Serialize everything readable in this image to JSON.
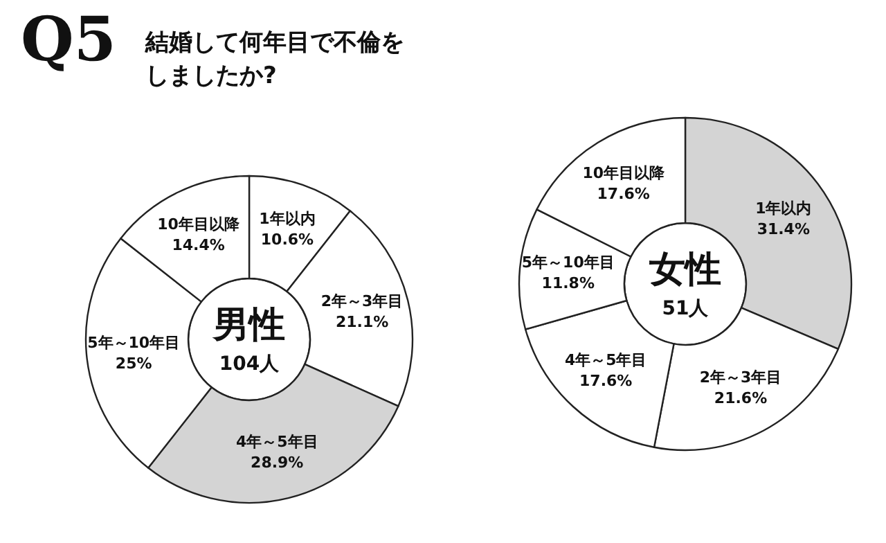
{
  "chart_data": [
    {
      "type": "donut",
      "title": "Q5",
      "subtitle": "結婚して何年目で不倫をしましたか?",
      "annotations": [
        "男性",
        "104人"
      ],
      "categories": [
        "1年以内",
        "2年～3年目",
        "4年～5年目",
        "5年～10年目",
        "10年目以降"
      ],
      "values": [
        10.6,
        21.1,
        28.9,
        25,
        14.4
      ],
      "value_labels": [
        "10.6%",
        "21.1%",
        "28.9%",
        "25%",
        "14.4%"
      ],
      "colors": [
        "#ffffff",
        "#ffffff",
        "#d4d4d4",
        "#ffffff",
        "#ffffff"
      ],
      "legend": false
    },
    {
      "type": "donut",
      "annotations": [
        "女性",
        "51人"
      ],
      "categories": [
        "1年以内",
        "2年～3年目",
        "4年～5年目",
        "5年～10年目",
        "10年目以降"
      ],
      "values": [
        31.4,
        21.6,
        17.6,
        11.8,
        17.6
      ],
      "value_labels": [
        "31.4%",
        "21.6%",
        "17.6%",
        "11.8%",
        "17.6%"
      ],
      "colors": [
        "#d4d4d4",
        "#ffffff",
        "#ffffff",
        "#ffffff",
        "#ffffff"
      ],
      "legend": false
    }
  ]
}
